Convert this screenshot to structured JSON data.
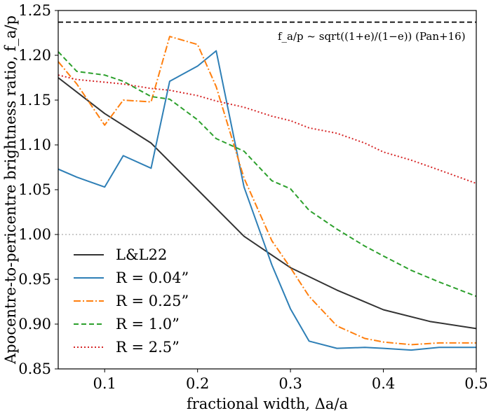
{
  "chart_data": {
    "type": "line",
    "title": "",
    "xlabel": "fractional width, Δa/a",
    "ylabel": "Apocentre-to-pericentre brightness ratio, f_a/p",
    "xlim": [
      0.05,
      0.5
    ],
    "ylim": [
      0.85,
      1.25
    ],
    "xticks": [
      0.1,
      0.2,
      0.3,
      0.4,
      0.5
    ],
    "xtick_labels": [
      "0.1",
      "0.2",
      "0.3",
      "0.4",
      "0.5"
    ],
    "yticks": [
      0.85,
      0.9,
      0.95,
      1.0,
      1.05,
      1.1,
      1.15,
      1.2,
      1.25
    ],
    "ytick_labels": [
      "0.85",
      "0.90",
      "0.95",
      "1.00",
      "1.05",
      "1.10",
      "1.15",
      "1.20",
      "1.25"
    ],
    "grid": false,
    "legend_position": "lower-left",
    "reference_lines": [
      {
        "name": "Pan+16 limit",
        "y": 1.237,
        "style": "dashed",
        "color": "#000000"
      },
      {
        "name": "unity",
        "y": 1.0,
        "style": "dotted",
        "color": "#aaaaaa"
      }
    ],
    "annotation": "f_a/p ~ sqrt((1+e)/(1−e)) (Pan+16)",
    "series": [
      {
        "name": "L&L22",
        "label": "L&L22",
        "color": "#333333",
        "style": "solid",
        "x": [
          0.05,
          0.1,
          0.15,
          0.2,
          0.25,
          0.3,
          0.35,
          0.4,
          0.45,
          0.5
        ],
        "y": [
          1.175,
          1.135,
          1.102,
          1.05,
          0.998,
          0.963,
          0.938,
          0.916,
          0.903,
          0.895
        ]
      },
      {
        "name": "R = 0.04\"",
        "label": "R = 0.04”",
        "color": "#2e7fb6",
        "style": "solid",
        "x": [
          0.05,
          0.07,
          0.1,
          0.12,
          0.15,
          0.17,
          0.2,
          0.22,
          0.25,
          0.28,
          0.3,
          0.32,
          0.35,
          0.38,
          0.4,
          0.43,
          0.46,
          0.5
        ],
        "y": [
          1.073,
          1.064,
          1.053,
          1.088,
          1.074,
          1.171,
          1.188,
          1.205,
          1.053,
          0.966,
          0.917,
          0.881,
          0.873,
          0.874,
          0.873,
          0.871,
          0.874,
          0.874
        ]
      },
      {
        "name": "R = 0.25\"",
        "label": "R = 0.25”",
        "color": "#ff7f0e",
        "style": "dashdot",
        "x": [
          0.05,
          0.07,
          0.1,
          0.12,
          0.15,
          0.17,
          0.2,
          0.22,
          0.25,
          0.28,
          0.3,
          0.32,
          0.35,
          0.38,
          0.4,
          0.43,
          0.46,
          0.5
        ],
        "y": [
          1.193,
          1.168,
          1.122,
          1.15,
          1.148,
          1.221,
          1.212,
          1.165,
          1.063,
          0.993,
          0.963,
          0.931,
          0.898,
          0.884,
          0.88,
          0.877,
          0.879,
          0.879
        ]
      },
      {
        "name": "R = 1.0\"",
        "label": "R = 1.0”",
        "color": "#2ca02c",
        "style": "dashed",
        "x": [
          0.05,
          0.07,
          0.1,
          0.12,
          0.15,
          0.17,
          0.2,
          0.22,
          0.25,
          0.28,
          0.3,
          0.32,
          0.35,
          0.38,
          0.4,
          0.43,
          0.46,
          0.5
        ],
        "y": [
          1.204,
          1.182,
          1.178,
          1.171,
          1.154,
          1.151,
          1.128,
          1.107,
          1.093,
          1.06,
          1.051,
          1.027,
          1.006,
          0.987,
          0.976,
          0.96,
          0.947,
          0.931
        ]
      },
      {
        "name": "R = 2.5\"",
        "label": "R = 2.5”",
        "color": "#d62728",
        "style": "dotted",
        "x": [
          0.05,
          0.07,
          0.1,
          0.12,
          0.15,
          0.17,
          0.2,
          0.22,
          0.25,
          0.28,
          0.3,
          0.32,
          0.35,
          0.38,
          0.4,
          0.43,
          0.46,
          0.5
        ],
        "y": [
          1.178,
          1.173,
          1.17,
          1.168,
          1.163,
          1.161,
          1.155,
          1.149,
          1.142,
          1.132,
          1.127,
          1.119,
          1.113,
          1.102,
          1.092,
          1.083,
          1.072,
          1.057
        ]
      }
    ]
  }
}
